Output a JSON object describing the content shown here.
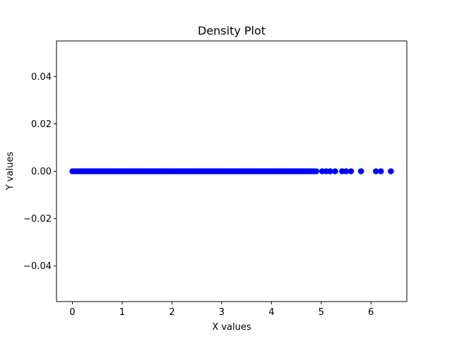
{
  "chart_data": {
    "type": "scatter",
    "title": "Density Plot",
    "xlabel": "X values",
    "ylabel": "Y values",
    "xlim": [
      -0.32,
      6.72
    ],
    "ylim": [
      -0.055,
      0.055
    ],
    "xticks": [
      0,
      1,
      2,
      3,
      4,
      5,
      6
    ],
    "xtick_labels": [
      "0",
      "1",
      "2",
      "3",
      "4",
      "5",
      "6"
    ],
    "yticks": [
      -0.04,
      -0.02,
      0.0,
      0.02,
      0.04
    ],
    "ytick_labels": [
      "−0.04",
      "−0.02",
      "0.00",
      "0.02",
      "0.04"
    ],
    "grid": false,
    "legend": "none",
    "marker_color": "#0000ff",
    "series": [
      {
        "x": [
          0.0,
          0.05,
          0.1,
          0.15,
          0.2,
          0.25,
          0.3,
          0.35,
          0.4,
          0.45,
          0.5,
          0.55,
          0.6,
          0.65,
          0.7,
          0.75,
          0.8,
          0.85,
          0.9,
          0.95,
          1.0,
          1.05,
          1.1,
          1.15,
          1.2,
          1.25,
          1.3,
          1.35,
          1.4,
          1.45,
          1.5,
          1.55,
          1.6,
          1.65,
          1.7,
          1.75,
          1.8,
          1.85,
          1.9,
          1.95,
          2.0,
          2.05,
          2.1,
          2.15,
          2.2,
          2.25,
          2.3,
          2.35,
          2.4,
          2.45,
          2.5,
          2.55,
          2.6,
          2.65,
          2.7,
          2.75,
          2.8,
          2.85,
          2.9,
          2.95,
          3.0,
          3.05,
          3.1,
          3.15,
          3.2,
          3.25,
          3.3,
          3.35,
          3.4,
          3.45,
          3.5,
          3.55,
          3.6,
          3.65,
          3.7,
          3.75,
          3.8,
          3.85,
          3.9,
          3.95,
          4.0,
          4.05,
          4.1,
          4.15,
          4.2,
          4.25,
          4.3,
          4.35,
          4.4,
          4.45,
          4.5,
          4.55,
          4.6,
          4.65,
          4.7,
          4.75,
          4.8,
          4.85,
          4.9,
          5.02,
          5.1,
          5.18,
          5.28,
          5.42,
          5.5,
          5.6,
          5.8,
          6.1,
          6.2,
          6.4
        ],
        "y": [
          0,
          0,
          0,
          0,
          0,
          0,
          0,
          0,
          0,
          0,
          0,
          0,
          0,
          0,
          0,
          0,
          0,
          0,
          0,
          0,
          0,
          0,
          0,
          0,
          0,
          0,
          0,
          0,
          0,
          0,
          0,
          0,
          0,
          0,
          0,
          0,
          0,
          0,
          0,
          0,
          0,
          0,
          0,
          0,
          0,
          0,
          0,
          0,
          0,
          0,
          0,
          0,
          0,
          0,
          0,
          0,
          0,
          0,
          0,
          0,
          0,
          0,
          0,
          0,
          0,
          0,
          0,
          0,
          0,
          0,
          0,
          0,
          0,
          0,
          0,
          0,
          0,
          0,
          0,
          0,
          0,
          0,
          0,
          0,
          0,
          0,
          0,
          0,
          0,
          0,
          0,
          0,
          0,
          0,
          0,
          0,
          0,
          0,
          0,
          0,
          0,
          0,
          0,
          0,
          0,
          0,
          0,
          0,
          0,
          0
        ]
      }
    ]
  }
}
